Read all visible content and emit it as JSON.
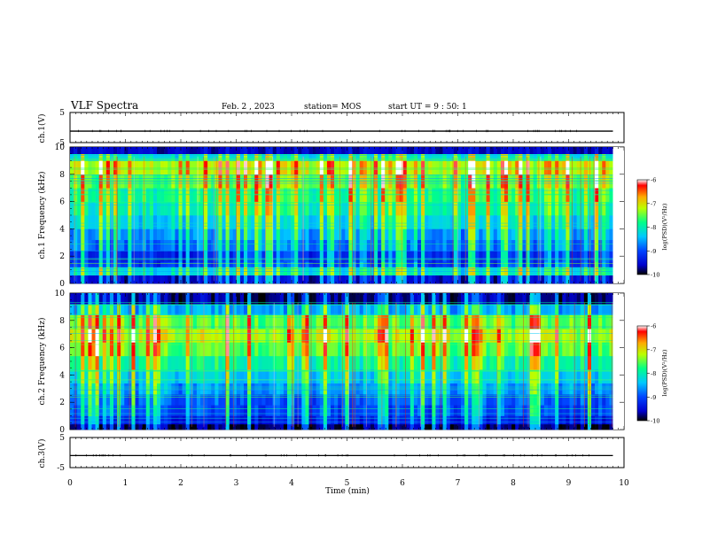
{
  "header": {
    "title": "VLF Spectra",
    "date": "Feb. 2 , 2023",
    "station": "station= MOS",
    "start": "start UT = 9 : 50: 1"
  },
  "colors": {
    "spectrogram_colormap": [
      "#000000",
      "#0000cc",
      "#0044ff",
      "#00c8ff",
      "#00ff88",
      "#bbff00",
      "#ffaa00",
      "#ff0000",
      "#ffffff"
    ]
  },
  "chart_data": [
    {
      "type": "line",
      "panel": "ch.1",
      "ylabel": "ch.1(V)",
      "ylim": [
        -5,
        5
      ],
      "y_ticks": [
        "5",
        "-5"
      ],
      "xlim": [
        0,
        10
      ],
      "series": [
        {
          "x": [
            0,
            10
          ],
          "y": [
            -1.2,
            -1.2
          ]
        }
      ]
    },
    {
      "type": "heatmap",
      "panel": "ch.1",
      "ylabel": "ch.1 Frequency (kHz)",
      "ylim": [
        0,
        10
      ],
      "y_ticks": [
        "0",
        "2",
        "4",
        "6",
        "8",
        "10"
      ],
      "xlim": [
        0,
        9.8
      ],
      "colorbar": {
        "label": "log(PSD)(V²/Hz)",
        "range": [
          -10,
          -6
        ],
        "ticks": [
          "-6",
          "-7",
          "-8",
          "-9",
          "-10"
        ]
      },
      "bands": [
        {
          "from": 0.0,
          "to": 0.6,
          "level": -9.5
        },
        {
          "from": 0.6,
          "to": 1.2,
          "level": -8.2
        },
        {
          "from": 1.2,
          "to": 1.6,
          "level": -9.1
        },
        {
          "from": 1.6,
          "to": 2.4,
          "level": -9.2
        },
        {
          "from": 2.4,
          "to": 3.2,
          "level": -8.8
        },
        {
          "from": 3.2,
          "to": 4.0,
          "level": -8.6
        },
        {
          "from": 4.0,
          "to": 5.0,
          "level": -8.3
        },
        {
          "from": 5.0,
          "to": 6.0,
          "level": -8.0
        },
        {
          "from": 6.0,
          "to": 7.0,
          "level": -7.8
        },
        {
          "from": 7.0,
          "to": 8.0,
          "level": -7.5
        },
        {
          "from": 8.0,
          "to": 9.0,
          "level": -7.2
        },
        {
          "from": 9.0,
          "to": 9.5,
          "level": -8.2
        },
        {
          "from": 9.5,
          "to": 10.0,
          "level": -9.6
        }
      ]
    },
    {
      "type": "heatmap",
      "panel": "ch.2",
      "ylabel": "ch.2 Frequency (kHz)",
      "ylim": [
        0,
        10
      ],
      "y_ticks": [
        "0",
        "2",
        "4",
        "6",
        "8",
        "10"
      ],
      "xlim": [
        0,
        9.8
      ],
      "colorbar": {
        "label": "log(PSD)(V²/Hz)",
        "range": [
          -10,
          -6
        ],
        "ticks": [
          "-6",
          "-7",
          "-8",
          "-9",
          "-10"
        ]
      },
      "bands": [
        {
          "from": 0.0,
          "to": 0.4,
          "level": -9.8
        },
        {
          "from": 0.4,
          "to": 1.0,
          "level": -9.3
        },
        {
          "from": 1.0,
          "to": 1.8,
          "level": -9.0
        },
        {
          "from": 1.8,
          "to": 2.6,
          "level": -8.9
        },
        {
          "from": 2.6,
          "to": 3.4,
          "level": -8.6
        },
        {
          "from": 3.4,
          "to": 4.4,
          "level": -8.3
        },
        {
          "from": 4.4,
          "to": 5.4,
          "level": -7.9
        },
        {
          "from": 5.4,
          "to": 6.4,
          "level": -7.5
        },
        {
          "from": 6.4,
          "to": 7.4,
          "level": -7.2
        },
        {
          "from": 7.4,
          "to": 8.4,
          "level": -7.5
        },
        {
          "from": 8.4,
          "to": 9.2,
          "level": -8.5
        },
        {
          "from": 9.2,
          "to": 10.0,
          "level": -9.7
        }
      ]
    },
    {
      "type": "line",
      "panel": "ch.3",
      "ylabel": "ch.3(V)",
      "ylim": [
        -5,
        5
      ],
      "y_ticks": [
        "5",
        "-5"
      ],
      "xlim": [
        0,
        10
      ],
      "series": [
        {
          "x": [
            0,
            10
          ],
          "y": [
            -1.0,
            -1.0
          ]
        }
      ]
    }
  ],
  "x_axis": {
    "label": "Time (min)",
    "range": [
      0,
      10
    ],
    "ticks": [
      "0",
      "1",
      "2",
      "3",
      "4",
      "5",
      "6",
      "7",
      "8",
      "9",
      "10"
    ]
  }
}
